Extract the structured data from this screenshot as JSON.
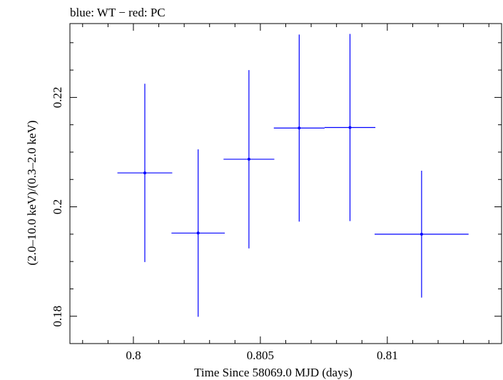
{
  "chart_data": {
    "type": "scatter",
    "title": "blue: WT − red: PC",
    "xlabel": "Time Since 58069.0 MJD (days)",
    "ylabel": "(2.0–10.0 keV)/(0.3–2.0 keV)",
    "xlim": [
      0.7975,
      0.8145
    ],
    "ylim": [
      0.175,
      0.2335
    ],
    "x_ticks": [
      {
        "value": 0.8,
        "label": "0.8"
      },
      {
        "value": 0.805,
        "label": "0.805"
      },
      {
        "value": 0.81,
        "label": "0.81"
      }
    ],
    "y_ticks": [
      {
        "value": 0.18,
        "label": "0.18"
      },
      {
        "value": 0.2,
        "label": "0.2"
      },
      {
        "value": 0.22,
        "label": "0.22"
      }
    ],
    "series": [
      {
        "name": "WT",
        "color": "#0000ff",
        "points": [
          {
            "x": 0.80045,
            "xerr": 0.00108,
            "y": 0.2062,
            "yerr": 0.0163
          },
          {
            "x": 0.80255,
            "xerr": 0.00105,
            "y": 0.1952,
            "yerr": 0.0153
          },
          {
            "x": 0.80455,
            "xerr": 0.001,
            "y": 0.2087,
            "yerr": 0.0163
          },
          {
            "x": 0.80653,
            "xerr": 0.001,
            "y": 0.2144,
            "yerr": 0.0171
          },
          {
            "x": 0.80853,
            "xerr": 0.001,
            "y": 0.2145,
            "yerr": 0.0171
          },
          {
            "x": 0.81135,
            "xerr": 0.00185,
            "y": 0.195,
            "yerr": 0.0116
          }
        ]
      }
    ]
  }
}
